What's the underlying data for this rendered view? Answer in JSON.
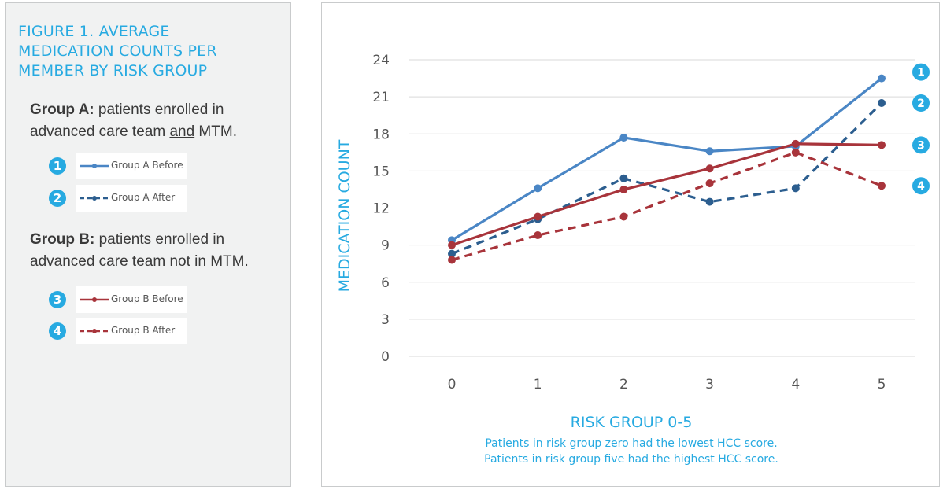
{
  "figure_title": "FIGURE 1. AVERAGE MEDICATION COUNTS PER MEMBER BY RISK GROUP",
  "group_a": {
    "lead": "Group A:",
    "text_1": " patients enrolled in advanced care team ",
    "emphasis": "and",
    "text_2": " MTM."
  },
  "group_b": {
    "lead": "Group B:",
    "text_1": " patients enrolled in advanced care team ",
    "emphasis": "not",
    "text_2": " in MTM."
  },
  "legend": [
    {
      "badge": "1",
      "label": "Group A Before",
      "color": "#4a86c5",
      "dash": false
    },
    {
      "badge": "2",
      "label": "Group A After",
      "color": "#2c5e8f",
      "dash": true
    },
    {
      "badge": "3",
      "label": "Group B Before",
      "color": "#a8343b",
      "dash": false
    },
    {
      "badge": "4",
      "label": "Group B After",
      "color": "#a8343b",
      "dash": true
    }
  ],
  "colors": {
    "accent": "#27aae1"
  },
  "chart_data": {
    "type": "line",
    "x": [
      0,
      1,
      2,
      3,
      4,
      5
    ],
    "ylabel": "MEDICATION COUNT",
    "xlabel": "RISK GROUP 0-5",
    "caption_1": "Patients in risk group zero had the lowest HCC score.",
    "caption_2": "Patients in risk group five had the highest HCC score.",
    "ylim": [
      0,
      24
    ],
    "yticks": [
      0,
      3,
      6,
      9,
      12,
      15,
      18,
      21,
      24
    ],
    "grid": true,
    "series": [
      {
        "name": "Group A Before",
        "badge": "1",
        "color": "#4a86c5",
        "dash": false,
        "values": [
          9.4,
          13.6,
          17.7,
          16.6,
          17.0,
          22.5
        ]
      },
      {
        "name": "Group A After",
        "badge": "2",
        "color": "#2c5e8f",
        "dash": true,
        "values": [
          8.3,
          11.1,
          14.4,
          12.5,
          13.6,
          20.5
        ]
      },
      {
        "name": "Group B Before",
        "badge": "3",
        "color": "#a8343b",
        "dash": false,
        "values": [
          9.0,
          11.3,
          13.5,
          15.2,
          17.2,
          17.1
        ]
      },
      {
        "name": "Group B After",
        "badge": "4",
        "color": "#a8343b",
        "dash": true,
        "values": [
          7.8,
          9.8,
          11.3,
          14.0,
          16.5,
          13.8
        ]
      }
    ]
  }
}
